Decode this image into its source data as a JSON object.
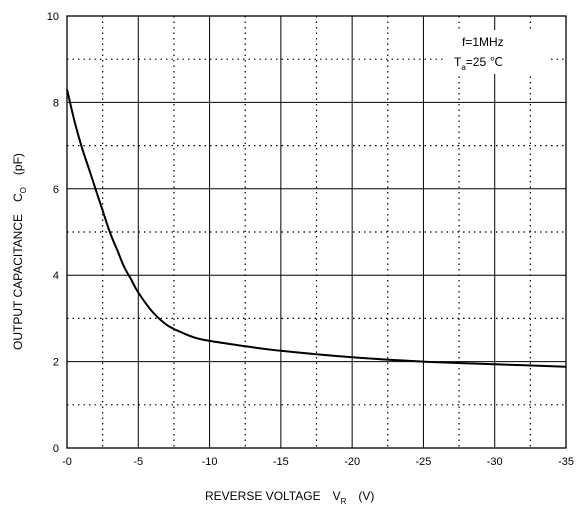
{
  "chart_data": {
    "type": "line",
    "title": "",
    "xlabel": {
      "main": "REVERSE VOLTAGE",
      "symbol": "V",
      "sub": "R",
      "unit": "(V)"
    },
    "ylabel": {
      "main": "OUTPUT CAPACITANCE",
      "symbol": "C",
      "sub": "O",
      "unit": "(pF)"
    },
    "xlim": [
      0,
      -35
    ],
    "ylim": [
      0,
      10
    ],
    "x_ticks": [
      0,
      -5,
      -10,
      -15,
      -20,
      -25,
      -30,
      -35
    ],
    "x_tick_labels": [
      "-0",
      "-5",
      "-10",
      "-15",
      "-20",
      "-25",
      "-30",
      "-35"
    ],
    "y_ticks": [
      0,
      2,
      4,
      6,
      8,
      10
    ],
    "y_tick_labels": [
      "0",
      "2",
      "4",
      "6",
      "8",
      "10"
    ],
    "grid": {
      "major": "solid",
      "minor": "dotted"
    },
    "annotations": {
      "line1": "f=1MHz",
      "line2_prefix": "T",
      "line2_sub": "a",
      "line2_suffix": "=25 ℃"
    },
    "series": [
      {
        "x": [
          0,
          -0.5,
          -1,
          -1.5,
          -2,
          -2.5,
          -3,
          -3.5,
          -4,
          -4.5,
          -5,
          -6,
          -7,
          -8,
          -9,
          -10,
          -12,
          -15,
          -20,
          -25,
          -30,
          -35
        ],
        "y": [
          8.3,
          7.6,
          7.0,
          6.5,
          6.0,
          5.5,
          5.0,
          4.6,
          4.2,
          3.9,
          3.6,
          3.15,
          2.85,
          2.68,
          2.55,
          2.48,
          2.38,
          2.25,
          2.1,
          2.0,
          1.94,
          1.88
        ]
      }
    ]
  }
}
